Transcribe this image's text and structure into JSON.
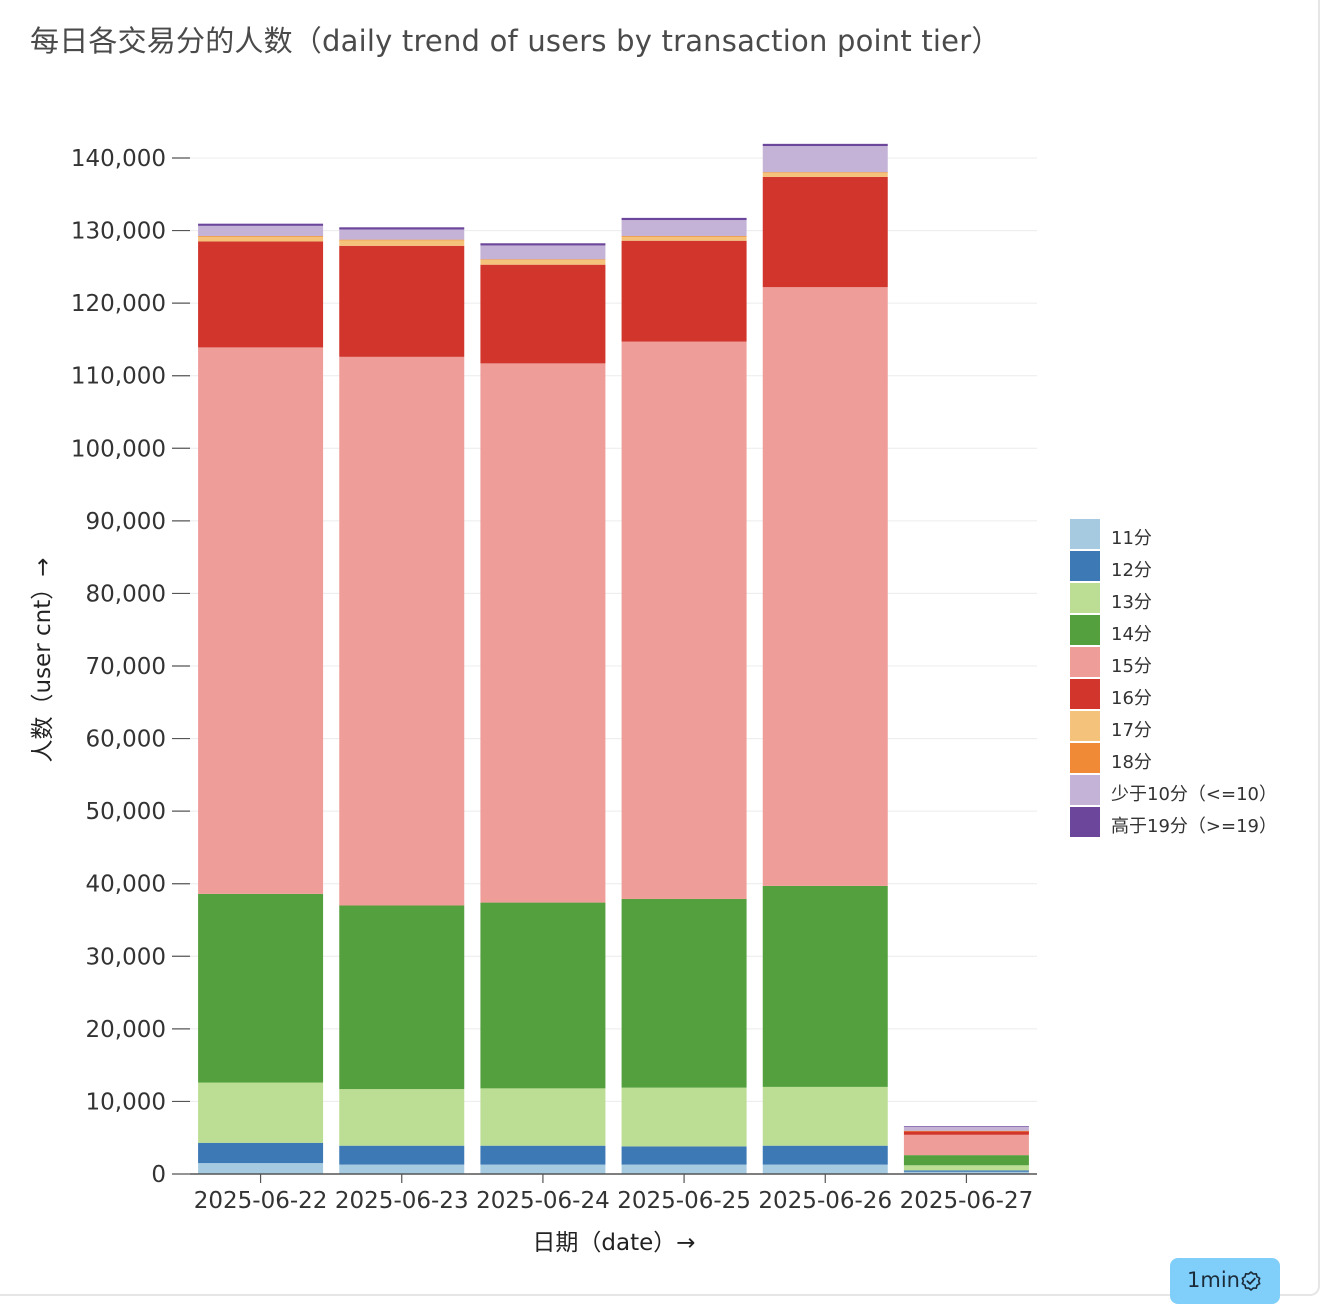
{
  "title": "每日各交易分的人数（daily trend of users by transaction point tier）",
  "badge": {
    "text": "1min",
    "icon": "check-badge-icon"
  },
  "chart_data": {
    "type": "bar",
    "stacked": true,
    "title": "每日各交易分的人数（daily trend of users by transaction point tier）",
    "xlabel": "日期（date）→",
    "ylabel": "人数（user cnt）→",
    "ylim": [
      0,
      140000
    ],
    "yticks": [
      0,
      10000,
      20000,
      30000,
      40000,
      50000,
      60000,
      70000,
      80000,
      90000,
      100000,
      110000,
      120000,
      130000,
      140000
    ],
    "ytick_labels": [
      "0",
      "10,000",
      "20,000",
      "30,000",
      "40,000",
      "50,000",
      "60,000",
      "70,000",
      "80,000",
      "90,000",
      "100,000",
      "110,000",
      "120,000",
      "130,000",
      "140,000"
    ],
    "grid": true,
    "legend_position": "right",
    "categories": [
      "2025-06-22",
      "2025-06-23",
      "2025-06-24",
      "2025-06-25",
      "2025-06-26",
      "2025-06-27"
    ],
    "series": [
      {
        "name": "11分",
        "color": "#a6cbe1",
        "values": [
          1500,
          1300,
          1300,
          1300,
          1300,
          300
        ]
      },
      {
        "name": "12分",
        "color": "#3d79b4",
        "values": [
          2800,
          2600,
          2600,
          2500,
          2600,
          200
        ]
      },
      {
        "name": "13分",
        "color": "#bcdd94",
        "values": [
          8300,
          7800,
          7900,
          8100,
          8100,
          700
        ]
      },
      {
        "name": "14分",
        "color": "#55a03e",
        "values": [
          26000,
          25300,
          25600,
          26000,
          27700,
          1400
        ]
      },
      {
        "name": "15分",
        "color": "#ee9d99",
        "values": [
          75300,
          75600,
          74300,
          76800,
          82500,
          2800
        ]
      },
      {
        "name": "16分",
        "color": "#d1352c",
        "values": [
          14600,
          15300,
          13600,
          13900,
          15200,
          500
        ]
      },
      {
        "name": "17分",
        "color": "#f4c27b",
        "values": [
          700,
          800,
          700,
          600,
          600,
          50
        ]
      },
      {
        "name": "18分",
        "color": "#f08a36",
        "values": [
          50,
          50,
          50,
          50,
          50,
          10
        ]
      },
      {
        "name": "少于10分（<=10）",
        "color": "#c4b3d6",
        "values": [
          1400,
          1400,
          1900,
          2200,
          3600,
          600
        ]
      },
      {
        "name": "高于19分（>=19）",
        "color": "#6b469a",
        "values": [
          300,
          300,
          300,
          300,
          300,
          40
        ]
      }
    ]
  }
}
